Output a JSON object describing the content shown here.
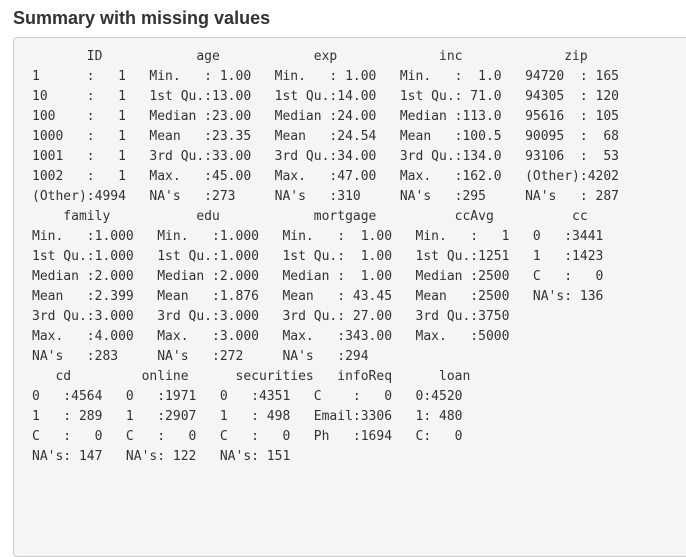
{
  "heading": "Summary with missing values",
  "output_lines": [
    "       ID            age            exp             inc             zip",
    "1      :   1   Min.   : 1.00   Min.   : 1.00   Min.   :  1.0   94720  : 165",
    "10     :   1   1st Qu.:13.00   1st Qu.:14.00   1st Qu.: 71.0   94305  : 120",
    "100    :   1   Median :23.00   Median :24.00   Median :113.0   95616  : 105",
    "1000   :   1   Mean   :23.35   Mean   :24.54   Mean   :100.5   90095  :  68",
    "1001   :   1   3rd Qu.:33.00   3rd Qu.:34.00   3rd Qu.:134.0   93106  :  53",
    "1002   :   1   Max.   :45.00   Max.   :47.00   Max.   :162.0   (Other):4202",
    "(Other):4994   NA's   :273     NA's   :310     NA's   :295     NA's   : 287",
    "    family           edu            mortgage          ccAvg          cc",
    "Min.   :1.000   Min.   :1.000   Min.   :  1.00   Min.   :   1   0   :3441",
    "1st Qu.:1.000   1st Qu.:1.000   1st Qu.:  1.00   1st Qu.:1251   1   :1423",
    "Median :2.000   Median :2.000   Median :  1.00   Median :2500   C   :   0",
    "Mean   :2.399   Mean   :1.876   Mean   : 43.45   Mean   :2500   NA's: 136",
    "3rd Qu.:3.000   3rd Qu.:3.000   3rd Qu.: 27.00   3rd Qu.:3750",
    "Max.   :4.000   Max.   :3.000   Max.   :343.00   Max.   :5000",
    "NA's   :283     NA's   :272     NA's   :294",
    "   cd         online      securities   infoReq      loan",
    "0   :4564   0   :1971   0   :4351   C    :   0   0:4520",
    "1   : 289   1   :2907   1   : 498   Email:3306   1: 480",
    "C   :   0   C   :   0   C   :   0   Ph   :1694   C:   0",
    "NA's: 147   NA's: 122   NA's: 151"
  ]
}
